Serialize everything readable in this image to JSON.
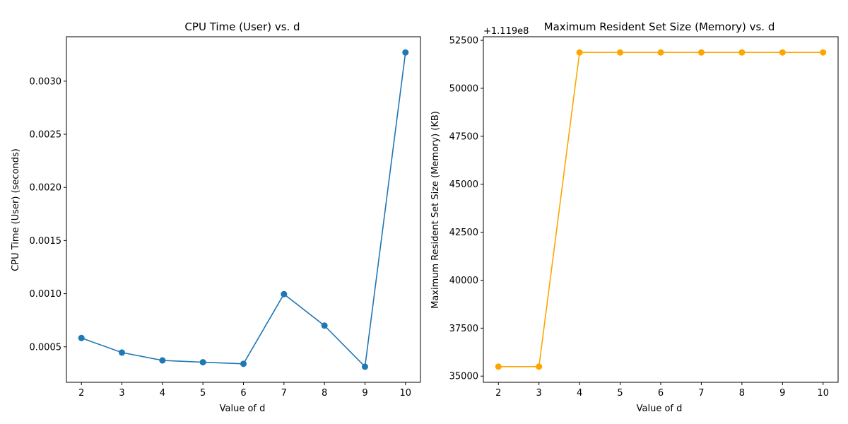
{
  "chart_data": [
    {
      "type": "line",
      "title": "CPU Time (User) vs. d",
      "xlabel": "Value of d",
      "ylabel": "CPU Time (User) (seconds)",
      "offset_text": "",
      "color": "#1f77b4",
      "marker": "circle",
      "grid": false,
      "xlim": [
        1.63,
        10.37
      ],
      "ylim": [
        0.000166,
        0.003418
      ],
      "x_ticks": [
        2,
        3,
        4,
        5,
        6,
        7,
        8,
        9,
        10
      ],
      "x_tick_labels": [
        "2",
        "3",
        "4",
        "5",
        "6",
        "7",
        "8",
        "9",
        "10"
      ],
      "y_ticks": [
        0.0005,
        0.001,
        0.0015,
        0.002,
        0.0025,
        0.003
      ],
      "y_tick_labels": [
        "0.0005",
        "0.0010",
        "0.0015",
        "0.0020",
        "0.0025",
        "0.0030"
      ],
      "x": [
        2,
        3,
        4,
        5,
        6,
        7,
        8,
        9,
        10
      ],
      "y": [
        0.000583,
        0.000446,
        0.000372,
        0.000355,
        0.00034,
        0.000996,
        0.0007,
        0.000313,
        0.00327
      ]
    },
    {
      "type": "line",
      "title": "Maximum Resident Set Size (Memory) vs. d",
      "xlabel": "Value of d",
      "ylabel": "Maximum Resident Set Size (Memory) (KB)",
      "offset_text": "+1.119e8",
      "color": "#ffa500",
      "marker": "circle",
      "grid": false,
      "xlim": [
        1.63,
        10.37
      ],
      "ylim": [
        34677,
        52687
      ],
      "x_ticks": [
        2,
        3,
        4,
        5,
        6,
        7,
        8,
        9,
        10
      ],
      "x_tick_labels": [
        "2",
        "3",
        "4",
        "5",
        "6",
        "7",
        "8",
        "9",
        "10"
      ],
      "y_ticks": [
        35000,
        37500,
        40000,
        42500,
        45000,
        47500,
        50000,
        52500
      ],
      "y_tick_labels": [
        "35000",
        "37500",
        "40000",
        "42500",
        "45000",
        "47500",
        "50000",
        "52500"
      ],
      "x": [
        2,
        3,
        4,
        5,
        6,
        7,
        8,
        9,
        10
      ],
      "y": [
        35496,
        35496,
        51868,
        51868,
        51868,
        51868,
        51868,
        51868,
        51868
      ]
    }
  ]
}
